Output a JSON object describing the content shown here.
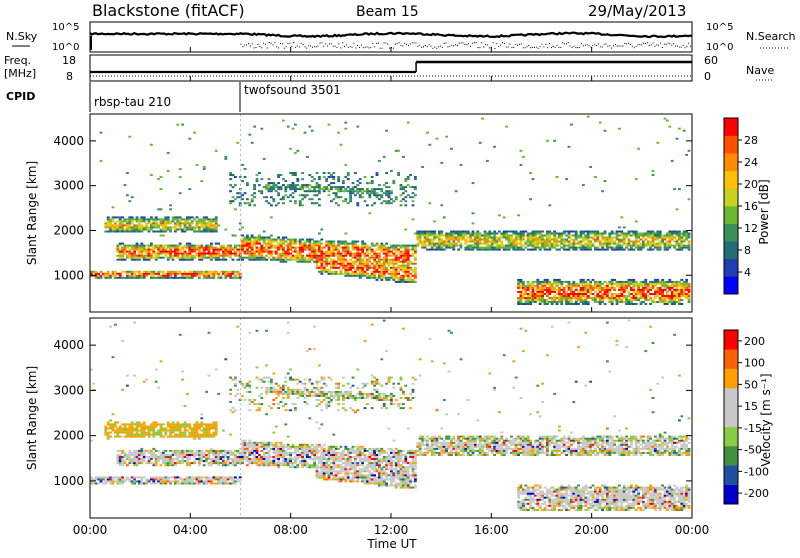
{
  "header": {
    "station": "Blackstone (fitACF)",
    "beam": "Beam 15",
    "date": "29/May/2013"
  },
  "left_labels": {
    "nsky": "N.Sky",
    "freq_line1": "Freq.",
    "freq_line2": "[MHz]",
    "cpid": "CPID"
  },
  "right_labels": {
    "nsearch": "N.Search",
    "nave": "Nave"
  },
  "noise_axis": {
    "ticks": [
      "10^5",
      "10^0"
    ]
  },
  "freq_axis": {
    "ticks": [
      "18",
      "8"
    ]
  },
  "nave_axis": {
    "ticks": [
      "60",
      "0"
    ]
  },
  "cpid_segments": [
    {
      "label": "rbsp-tau 210",
      "start_hour": 0
    },
    {
      "label": "twofsound 3501",
      "start_hour": 6
    }
  ],
  "colors": {
    "power_scale": [
      "#0000ff",
      "#2040b0",
      "#1f6e78",
      "#3d8f5a",
      "#6ab82e",
      "#c8d020",
      "#ffc000",
      "#ff8c00",
      "#ff5000",
      "#ff0000"
    ],
    "velocity_scale": [
      "#ff0000",
      "#ff6000",
      "#ffa000",
      "#c8c8c8",
      "#c8c8c8",
      "#88cc44",
      "#409040",
      "#2050a0",
      "#0000cc"
    ]
  },
  "chart_data": [
    {
      "type": "heatmap",
      "title": "Power",
      "xlabel": "",
      "ylabel": "Slant Range [km]",
      "x_ticks": [
        "00:00",
        "04:00",
        "08:00",
        "12:00",
        "16:00",
        "20:00",
        "00:00"
      ],
      "y_ticks": [
        "1000",
        "2000",
        "3000",
        "4000"
      ],
      "xlim_hours": [
        0,
        24
      ],
      "ylim_km": [
        180,
        4600
      ],
      "colorbar": {
        "label": "Power [dB]",
        "ticks": [
          "4",
          "8",
          "12",
          "16",
          "20",
          "24",
          "28"
        ],
        "range": [
          0,
          30
        ]
      },
      "echo_bands": [
        {
          "hours": [
            0,
            6
          ],
          "range_km": [
            900,
            1100
          ],
          "level": "high"
        },
        {
          "hours": [
            1,
            6
          ],
          "range_km": [
            1300,
            1700
          ],
          "level": "high"
        },
        {
          "hours": [
            0.5,
            5
          ],
          "range_km": [
            1900,
            2300
          ],
          "level": "medium"
        },
        {
          "hours": [
            6,
            13
          ],
          "range_km": [
            1300,
            1900
          ],
          "level": "high"
        },
        {
          "hours": [
            9,
            13
          ],
          "range_km": [
            800,
            1300
          ],
          "level": "high"
        },
        {
          "hours": [
            13,
            24
          ],
          "range_km": [
            1500,
            2000
          ],
          "level": "medium"
        },
        {
          "hours": [
            17,
            24
          ],
          "range_km": [
            300,
            900
          ],
          "level": "high"
        },
        {
          "hours": [
            7,
            12
          ],
          "range_km": [
            2900,
            3100
          ],
          "level": "low"
        }
      ]
    },
    {
      "type": "heatmap",
      "title": "Velocity",
      "xlabel": "Time UT",
      "ylabel": "Slant Range [km]",
      "x_ticks": [
        "00:00",
        "04:00",
        "08:00",
        "12:00",
        "16:00",
        "20:00",
        "00:00"
      ],
      "y_ticks": [
        "1000",
        "2000",
        "3000",
        "4000"
      ],
      "xlim_hours": [
        0,
        24
      ],
      "ylim_km": [
        180,
        4600
      ],
      "colorbar": {
        "label": "Velocity [m s⁻¹]",
        "ticks": [
          "200",
          "100",
          "50",
          "15",
          "-15",
          "-50",
          "-100",
          "-200"
        ],
        "range": [
          -250,
          250
        ]
      }
    }
  ]
}
